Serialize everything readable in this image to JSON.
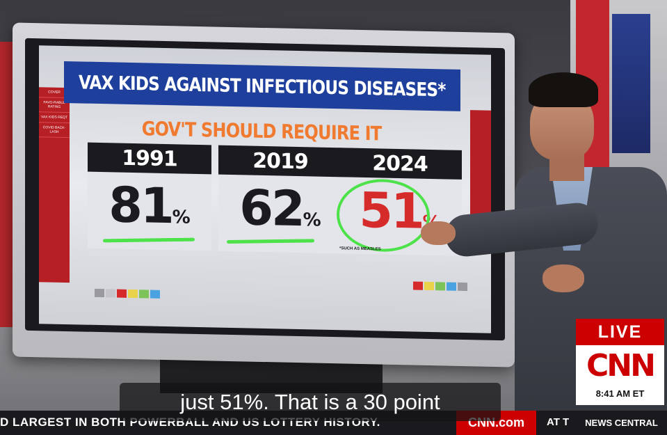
{
  "graphic": {
    "title": "VAX KIDS AGAINST INFECTIOUS DISEASES*",
    "subtitle": "GOV'T SHOULD REQUIRE IT",
    "left_rail": [
      "COVER",
      "FAVO-RABLE RATING",
      "VAX KIDS REQT",
      "COVID BACK-LASH"
    ],
    "cards": [
      {
        "year": "1991",
        "value": "81",
        "pct": "%",
        "highlight": "underline"
      },
      {
        "year": "2019",
        "value": "62",
        "pct": "%",
        "highlight": "underline"
      },
      {
        "year": "2024",
        "value": "51",
        "pct": "%",
        "highlight": "circle"
      }
    ],
    "footnote": "*SUCH AS MEASLES",
    "accent_colors": {
      "title_bg": "#1e3f9c",
      "subtitle": "#f07a2f",
      "highlight": "#4de24a",
      "value_2024": "#d52b2b"
    }
  },
  "bug": {
    "live": "LIVE",
    "network": "CNN",
    "time": "8:41 AM ET"
  },
  "ticker": {
    "text": "D LARGEST IN BOTH POWERBALL AND US LOTTERY HISTORY.",
    "site": "CNN.com",
    "right": "AT T",
    "section": "NEWS CENTRAL"
  },
  "caption": {
    "text": "just 51%. That is a 30 point"
  }
}
